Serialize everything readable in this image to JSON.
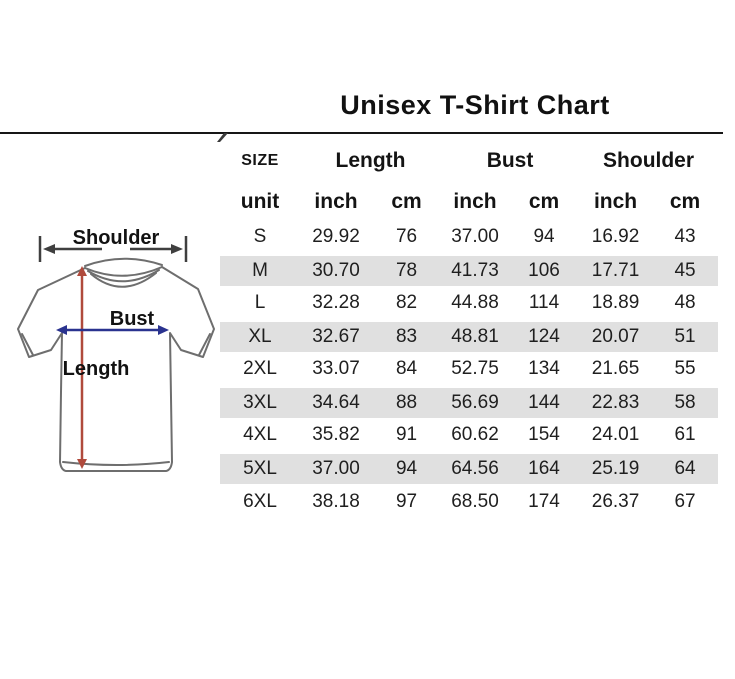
{
  "title": "Unisex T-Shirt Chart",
  "diagram": {
    "shoulder_label": "Shoulder",
    "bust_label": "Bust",
    "length_label": "Length",
    "colors": {
      "shirt_outline": "#6e6e6e",
      "length_arrow": "#b04a3c",
      "bust_arrow": "#2a338f",
      "shoulder_arrow": "#3f3f3f"
    }
  },
  "table": {
    "stripe_color": "#e0e0e0",
    "header": {
      "size": "SIZE",
      "groups": [
        {
          "label": "Length"
        },
        {
          "label": "Bust"
        },
        {
          "label": "Shoulder"
        }
      ]
    },
    "unit_row": [
      "unit",
      "inch",
      "cm",
      "inch",
      "cm",
      "inch",
      "cm"
    ],
    "rows": [
      {
        "size": "S",
        "cells": [
          "29.92",
          "76",
          "37.00",
          "94",
          "16.92",
          "43"
        ],
        "striped": false
      },
      {
        "size": "M",
        "cells": [
          "30.70",
          "78",
          "41.73",
          "106",
          "17.71",
          "45"
        ],
        "striped": true
      },
      {
        "size": "L",
        "cells": [
          "32.28",
          "82",
          "44.88",
          "114",
          "18.89",
          "48"
        ],
        "striped": false
      },
      {
        "size": "XL",
        "cells": [
          "32.67",
          "83",
          "48.81",
          "124",
          "20.07",
          "51"
        ],
        "striped": true
      },
      {
        "size": "2XL",
        "cells": [
          "33.07",
          "84",
          "52.75",
          "134",
          "21.65",
          "55"
        ],
        "striped": false
      },
      {
        "size": "3XL",
        "cells": [
          "34.64",
          "88",
          "56.69",
          "144",
          "22.83",
          "58"
        ],
        "striped": true
      },
      {
        "size": "4XL",
        "cells": [
          "35.82",
          "91",
          "60.62",
          "154",
          "24.01",
          "61"
        ],
        "striped": false
      },
      {
        "size": "5XL",
        "cells": [
          "37.00",
          "94",
          "64.56",
          "164",
          "25.19",
          "64"
        ],
        "striped": true
      },
      {
        "size": "6XL",
        "cells": [
          "38.18",
          "97",
          "68.50",
          "174",
          "26.37",
          "67"
        ],
        "striped": false
      }
    ]
  },
  "chart_data": {
    "type": "table",
    "title": "Unisex T-Shirt Chart",
    "columns": [
      "SIZE",
      "Length inch",
      "Length cm",
      "Bust inch",
      "Bust cm",
      "Shoulder inch",
      "Shoulder cm"
    ],
    "rows": [
      [
        "S",
        29.92,
        76,
        37.0,
        94,
        16.92,
        43
      ],
      [
        "M",
        30.7,
        78,
        41.73,
        106,
        17.71,
        45
      ],
      [
        "L",
        32.28,
        82,
        44.88,
        114,
        18.89,
        48
      ],
      [
        "XL",
        32.67,
        83,
        48.81,
        124,
        20.07,
        51
      ],
      [
        "2XL",
        33.07,
        84,
        52.75,
        134,
        21.65,
        55
      ],
      [
        "3XL",
        34.64,
        88,
        56.69,
        144,
        22.83,
        58
      ],
      [
        "4XL",
        35.82,
        91,
        60.62,
        154,
        24.01,
        61
      ],
      [
        "5XL",
        37.0,
        94,
        64.56,
        164,
        25.19,
        64
      ],
      [
        "6XL",
        38.18,
        97,
        68.5,
        174,
        26.37,
        67
      ]
    ]
  }
}
